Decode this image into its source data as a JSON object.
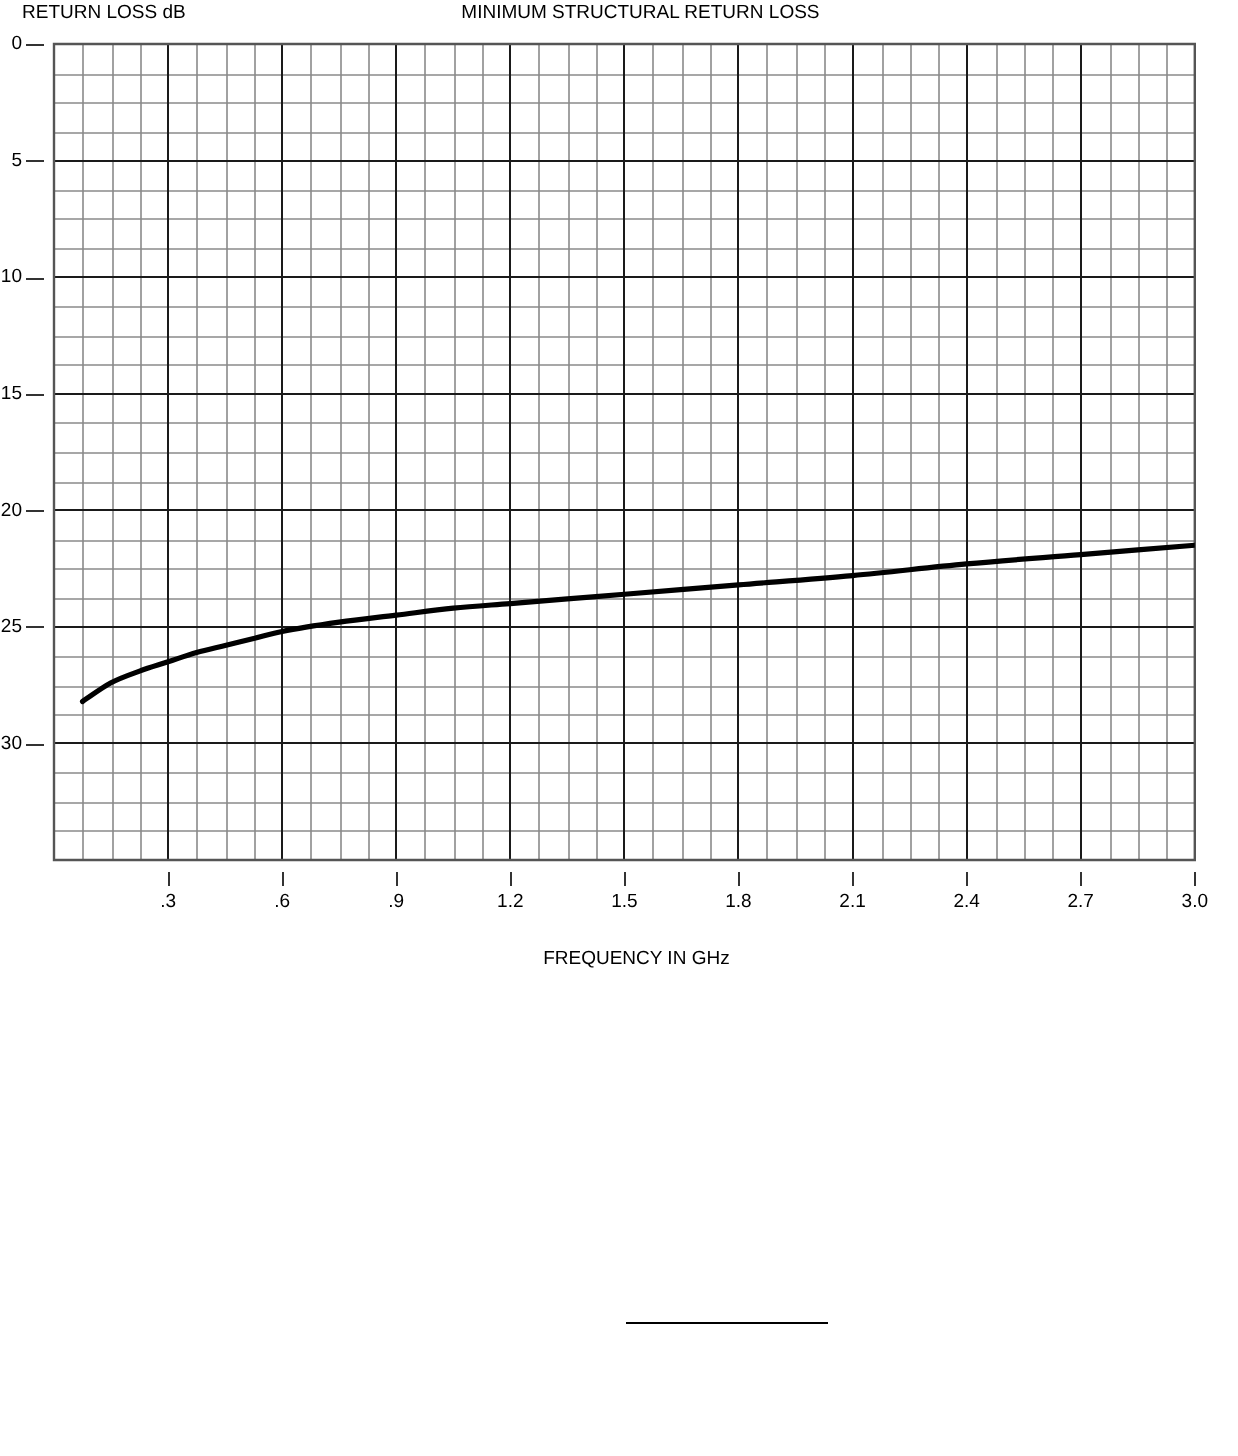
{
  "chart_data": {
    "type": "line",
    "title": "MINIMUM STRUCTURAL RETURN LOSS",
    "xlabel": "FREQUENCY IN GHz",
    "ylabel": "RETURN LOSS dB",
    "x": [
      0.075,
      0.15,
      0.225,
      0.3,
      0.375,
      0.45,
      0.525,
      0.6,
      0.75,
      0.9,
      1.05,
      1.2,
      1.35,
      1.5,
      1.8,
      2.1,
      2.4,
      2.7,
      3.0
    ],
    "values": [
      28.2,
      27.4,
      26.9,
      26.5,
      26.1,
      25.8,
      25.5,
      25.2,
      24.8,
      24.5,
      24.2,
      24.0,
      23.8,
      23.6,
      23.2,
      22.8,
      22.3,
      21.9,
      21.5
    ],
    "color": "#000000",
    "xlim": [
      0,
      3
    ],
    "xticks": [
      {
        "value": 0.3,
        "label": ".3"
      },
      {
        "value": 0.6,
        "label": ".6"
      },
      {
        "value": 0.9,
        "label": ".9"
      },
      1.2,
      1.5,
      1.8,
      2.1,
      2.4,
      2.7,
      {
        "value": 3,
        "label": "3.0"
      }
    ],
    "ylim": [
      35,
      0
    ],
    "yticks": [
      0,
      5,
      10,
      15,
      20,
      25,
      30
    ],
    "grid": true
  }
}
